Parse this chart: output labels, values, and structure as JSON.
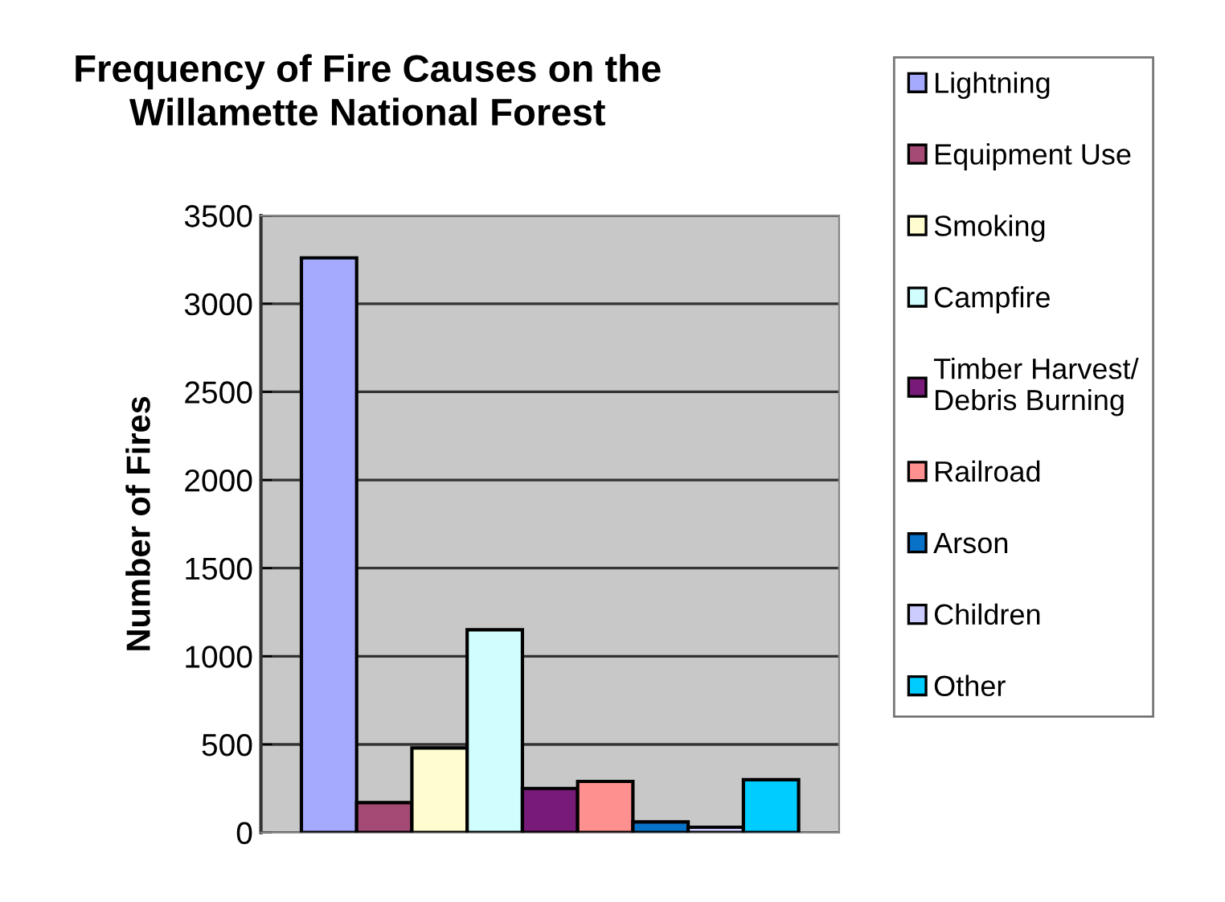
{
  "chart_data": {
    "type": "bar",
    "title": "Frequency of Fire Causes on the\nWillamette National Forest",
    "ylabel": "Number of Fires",
    "categories": [
      null
    ],
    "series": [
      {
        "name": "Lightning",
        "color": "#a6aaff",
        "values": [
          3260
        ]
      },
      {
        "name": "Equipment Use",
        "color": "#a54a74",
        "values": [
          170
        ]
      },
      {
        "name": "Smoking",
        "color": "#fffdd0",
        "values": [
          480
        ]
      },
      {
        "name": "Campfire",
        "color": "#d0fefe",
        "values": [
          1150
        ]
      },
      {
        "name": "Timber Harvest/\nDebris Burning",
        "color": "#781a78",
        "values": [
          250
        ]
      },
      {
        "name": "Railroad",
        "color": "#ff9090",
        "values": [
          290
        ]
      },
      {
        "name": "Arson",
        "color": "#0872c8",
        "values": [
          60
        ]
      },
      {
        "name": "Children",
        "color": "#cccdfe",
        "values": [
          30
        ]
      },
      {
        "name": "Other",
        "color": "#00ccff",
        "values": [
          300
        ]
      }
    ],
    "ylim": [
      0,
      3500
    ],
    "yticks": [
      0,
      500,
      1000,
      1500,
      2000,
      2500,
      3000,
      3500
    ],
    "grid": "y",
    "legend": "right"
  }
}
